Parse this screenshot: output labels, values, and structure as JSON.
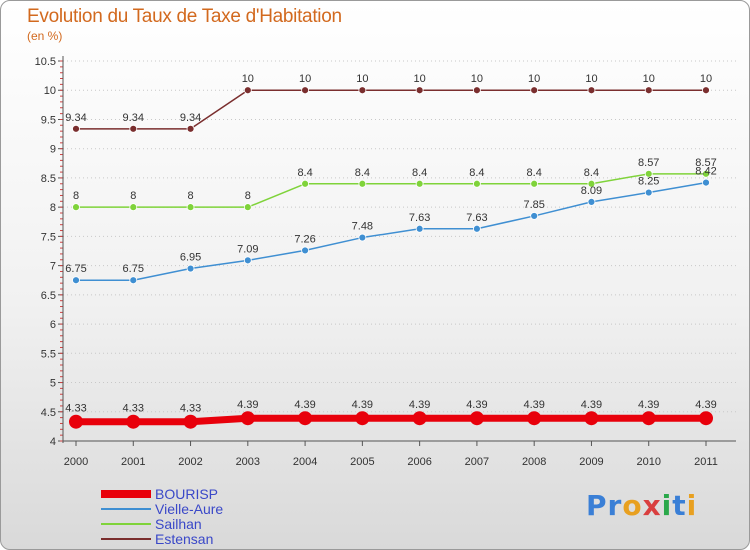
{
  "title": "Evolution du Taux de Taxe d'Habitation",
  "subtitle": "(en %)",
  "logo": {
    "text": "Proxiti",
    "colors": [
      "#3a7fd6",
      "#3a7fd6",
      "#e8a020",
      "#d93f3f",
      "#2aa84a",
      "#3a7fd6",
      "#e8a020"
    ]
  },
  "chart_data": {
    "type": "line",
    "x": [
      "2000",
      "2001",
      "2002",
      "2003",
      "2004",
      "2005",
      "2006",
      "2007",
      "2008",
      "2009",
      "2010",
      "2011"
    ],
    "ylim": [
      4,
      10.5
    ],
    "yticks": [
      "4",
      "4.5",
      "5",
      "5.5",
      "6",
      "6.5",
      "7",
      "7.5",
      "8",
      "8.5",
      "9",
      "9.5",
      "10",
      "10.5"
    ],
    "grid": "horizontal dotted",
    "legend_position": "bottom-left",
    "series": [
      {
        "name": "BOURISP",
        "color": "#e8000b",
        "values": [
          4.33,
          4.33,
          4.33,
          4.39,
          4.39,
          4.39,
          4.39,
          4.39,
          4.39,
          4.39,
          4.39,
          4.39
        ],
        "labels": [
          "4.33",
          "4.33",
          "4.33",
          "4.39",
          "4.39",
          "4.39",
          "4.39",
          "4.39",
          "4.39",
          "4.39",
          "4.39",
          "4.39"
        ]
      },
      {
        "name": "Vielle-Aure",
        "color": "#3f8fd2",
        "values": [
          6.75,
          6.75,
          6.95,
          7.09,
          7.26,
          7.48,
          7.63,
          7.63,
          7.85,
          8.09,
          8.25,
          8.42
        ],
        "labels": [
          "6.75",
          "6.75",
          "6.95",
          "7.09",
          "7.26",
          "7.48",
          "7.63",
          "7.63",
          "7.85",
          "8.09",
          "8.25",
          "8.42"
        ]
      },
      {
        "name": "Sailhan",
        "color": "#7fd33a",
        "values": [
          8,
          8,
          8,
          8,
          8.4,
          8.4,
          8.4,
          8.4,
          8.4,
          8.4,
          8.57,
          8.57
        ],
        "labels": [
          "8",
          "8",
          "8",
          "8",
          "8.4",
          "8.4",
          "8.4",
          "8.4",
          "8.4",
          "8.4",
          "8.57",
          "8.57"
        ]
      },
      {
        "name": "Estensan",
        "color": "#7a2e2e",
        "values": [
          9.34,
          9.34,
          9.34,
          10,
          10,
          10,
          10,
          10,
          10,
          10,
          10,
          10
        ],
        "labels": [
          "9.34",
          "9.34",
          "9.34",
          "10",
          "10",
          "10",
          "10",
          "10",
          "10",
          "10",
          "10",
          "10"
        ]
      }
    ]
  }
}
